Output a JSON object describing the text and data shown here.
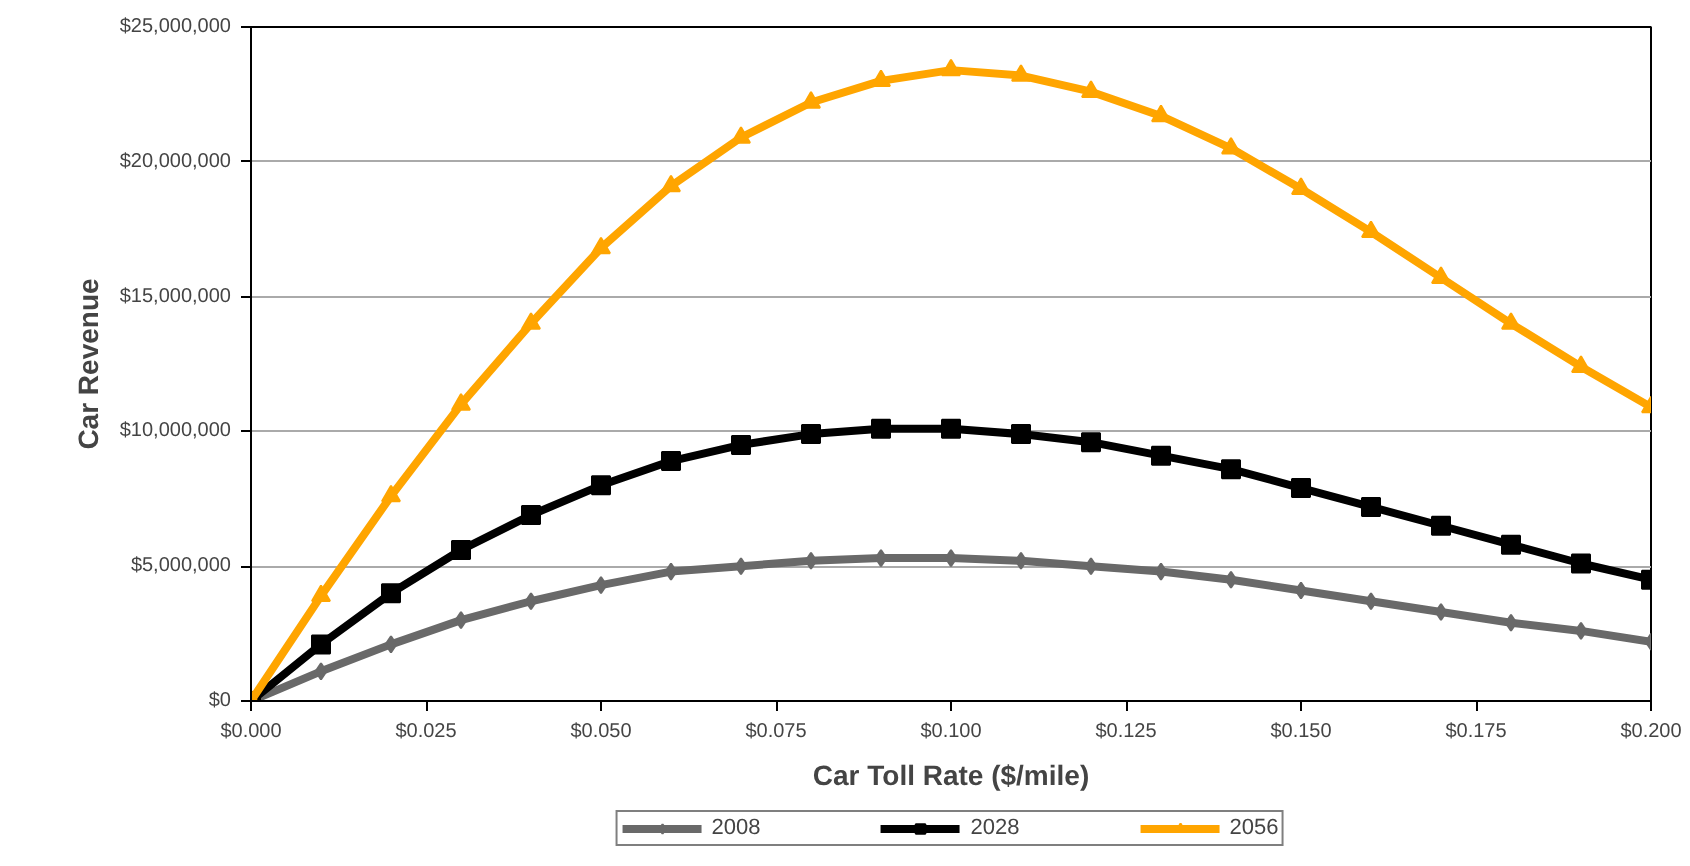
{
  "chart_data": {
    "type": "line",
    "xlabel": "Car Toll Rate ($/mile)",
    "ylabel": "Car Revenue",
    "x": [
      0,
      0.01,
      0.02,
      0.03,
      0.04,
      0.05,
      0.06,
      0.07,
      0.08,
      0.09,
      0.1,
      0.11,
      0.12,
      0.13,
      0.14,
      0.15,
      0.16,
      0.17,
      0.18,
      0.19,
      0.2
    ],
    "series": [
      {
        "name": "2008",
        "color": "#696969",
        "marker": "diamond",
        "values": [
          0,
          1100000,
          2100000,
          3000000,
          3700000,
          4300000,
          4800000,
          5000000,
          5200000,
          5300000,
          5300000,
          5200000,
          5000000,
          4800000,
          4500000,
          4100000,
          3700000,
          3300000,
          2900000,
          2600000,
          2200000
        ]
      },
      {
        "name": "2028",
        "color": "#000000",
        "marker": "square",
        "values": [
          0,
          2100000,
          4000000,
          5600000,
          6900000,
          8000000,
          8900000,
          9500000,
          9900000,
          10100000,
          10100000,
          9900000,
          9600000,
          9100000,
          8600000,
          7900000,
          7200000,
          6500000,
          5800000,
          5100000,
          4500000
        ]
      },
      {
        "name": "2056",
        "color": "#ffa500",
        "marker": "triangle",
        "values": [
          0,
          3900000,
          7600000,
          11000000,
          14000000,
          16800000,
          19100000,
          20900000,
          22200000,
          23000000,
          23400000,
          23200000,
          22600000,
          21700000,
          20500000,
          19000000,
          17400000,
          15700000,
          14000000,
          12400000,
          10900000
        ]
      }
    ],
    "xlim": [
      0,
      0.2
    ],
    "xticks": [
      {
        "value": 0,
        "label": "$0.000"
      },
      {
        "value": 0.025,
        "label": "$0.025"
      },
      {
        "value": 0.05,
        "label": "$0.050"
      },
      {
        "value": 0.075,
        "label": "$0.075"
      },
      {
        "value": 0.1,
        "label": "$0.100"
      },
      {
        "value": 0.125,
        "label": "$0.125"
      },
      {
        "value": 0.15,
        "label": "$0.150"
      },
      {
        "value": 0.175,
        "label": "$0.175"
      },
      {
        "value": 0.2,
        "label": "$0.200"
      }
    ],
    "ylim": [
      0,
      25000000
    ],
    "yticks": [
      {
        "value": 0,
        "label": "$0"
      },
      {
        "value": 5000000,
        "label": "$5,000,000"
      },
      {
        "value": 10000000,
        "label": "$10,000,000"
      },
      {
        "value": 15000000,
        "label": "$15,000,000"
      },
      {
        "value": 20000000,
        "label": "$20,000,000"
      },
      {
        "value": 25000000,
        "label": "$25,000,000"
      }
    ],
    "grid": "y",
    "legend": "bottom",
    "line_style": "solid"
  }
}
